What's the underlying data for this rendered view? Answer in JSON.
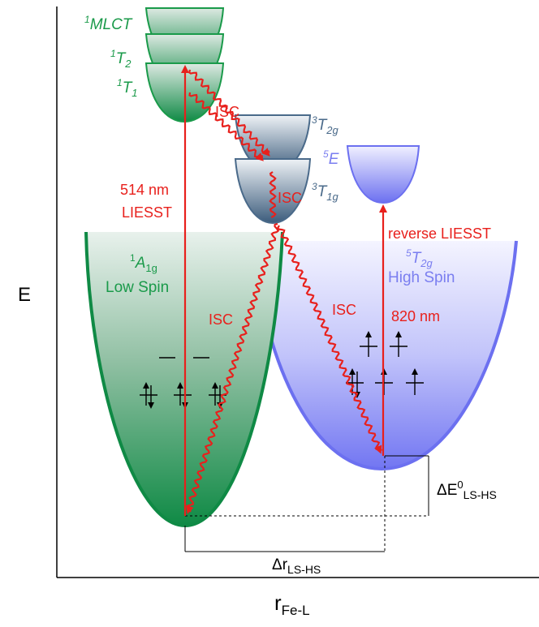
{
  "axes": {
    "y_label": "E",
    "x_label_main": "r",
    "x_label_sub": "Fe-L"
  },
  "states": {
    "mlct": {
      "sup": "1",
      "name": "MLCT"
    },
    "t2": {
      "sup": "1",
      "name": "T",
      "sub": "2"
    },
    "t1": {
      "sup": "1",
      "name": "T",
      "sub": "1"
    },
    "t2g3": {
      "sup": "3",
      "name": "T",
      "sub": "2g"
    },
    "e5": {
      "sup": "5",
      "name": "E"
    },
    "t1g3": {
      "sup": "3",
      "name": "T",
      "sub": "1g"
    },
    "a1g": {
      "sup": "1",
      "name": "A",
      "sub": "1g"
    },
    "low_spin": "Low Spin",
    "t2g5": {
      "sup": "5",
      "name": "T",
      "sub": "2g"
    },
    "high_spin": "High Spin"
  },
  "labels": {
    "wavelength_liesst": "514 nm",
    "liesst": "LIESST",
    "reverse_liesst": "reverse LIESST",
    "wavelength_reverse": "820 nm",
    "isc": "ISC"
  },
  "energy_gap": {
    "symbol": "ΔE",
    "sup": "0",
    "sub": "LS-HS"
  },
  "distance_gap": {
    "symbol": "Δr",
    "sub": "LS-HS"
  },
  "colors": {
    "low_spin": "#1a9a4a",
    "high_spin": "#7a7ef0",
    "intermediate": "#4a6a8a",
    "arrow": "#e8201c"
  }
}
